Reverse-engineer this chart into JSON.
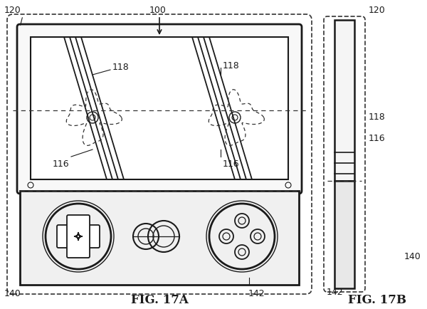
{
  "bg_color": "#ffffff",
  "line_color": "#1a1a1a",
  "dashed_color": "#333333",
  "fig_label_17A": "FIG. 17A",
  "fig_label_17B": "FIG. 17B",
  "ref_100": "100",
  "ref_120": "120",
  "ref_118": "118",
  "ref_116": "116",
  "ref_140": "140",
  "ref_142": "142"
}
